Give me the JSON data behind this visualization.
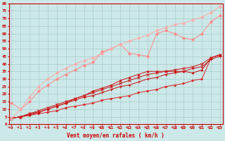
{
  "xlabel": "Vent moyen/en rafales ( km/h )",
  "background_color": "#cce8e8",
  "grid_color": "#aacccc",
  "x_values": [
    0,
    1,
    2,
    3,
    4,
    5,
    6,
    7,
    8,
    9,
    10,
    11,
    12,
    13,
    14,
    15,
    16,
    17,
    18,
    19,
    20,
    21,
    22,
    23
  ],
  "yticks": [
    0,
    5,
    10,
    15,
    20,
    25,
    30,
    35,
    40,
    45,
    50,
    55,
    60,
    65,
    70,
    75,
    80
  ],
  "lines": [
    {
      "color": "#dd2222",
      "linewidth": 0.7,
      "marker": ">",
      "markersize": 2,
      "y": [
        4,
        5,
        6,
        7,
        8,
        9,
        11,
        12,
        13,
        14,
        16,
        17,
        18,
        19,
        21,
        22,
        23,
        25,
        26,
        27,
        29,
        30,
        44,
        46
      ]
    },
    {
      "color": "#cc1111",
      "linewidth": 0.7,
      "marker": "+",
      "markersize": 3,
      "y": [
        4,
        5,
        7,
        8,
        10,
        12,
        14,
        16,
        18,
        19,
        21,
        23,
        25,
        26,
        28,
        30,
        31,
        33,
        34,
        35,
        37,
        38,
        43,
        45
      ]
    },
    {
      "color": "#cc1111",
      "linewidth": 0.7,
      "marker": "x",
      "markersize": 3,
      "y": [
        4,
        5,
        7,
        9,
        11,
        13,
        15,
        17,
        19,
        21,
        23,
        25,
        27,
        29,
        31,
        33,
        34,
        35,
        36,
        37,
        38,
        40,
        44,
        46
      ]
    },
    {
      "color": "#cc1111",
      "linewidth": 0.7,
      "marker": "^",
      "markersize": 2,
      "y": [
        4,
        5,
        6,
        8,
        10,
        12,
        14,
        17,
        19,
        22,
        24,
        26,
        29,
        31,
        33,
        35,
        35,
        35,
        35,
        35,
        34,
        36,
        44,
        46
      ]
    },
    {
      "color": "#ff8888",
      "linewidth": 0.7,
      "marker": "D",
      "markersize": 2,
      "y": [
        14,
        10,
        15,
        22,
        26,
        30,
        33,
        36,
        39,
        41,
        48,
        50,
        53,
        47,
        46,
        45,
        60,
        62,
        60,
        57,
        56,
        60,
        68,
        72
      ]
    },
    {
      "color": "#ffaaaa",
      "linewidth": 0.7,
      "marker": "D",
      "markersize": 2,
      "y": [
        4,
        10,
        18,
        25,
        30,
        34,
        37,
        40,
        42,
        44,
        47,
        50,
        53,
        55,
        57,
        59,
        62,
        64,
        66,
        67,
        69,
        71,
        74,
        78
      ]
    }
  ]
}
